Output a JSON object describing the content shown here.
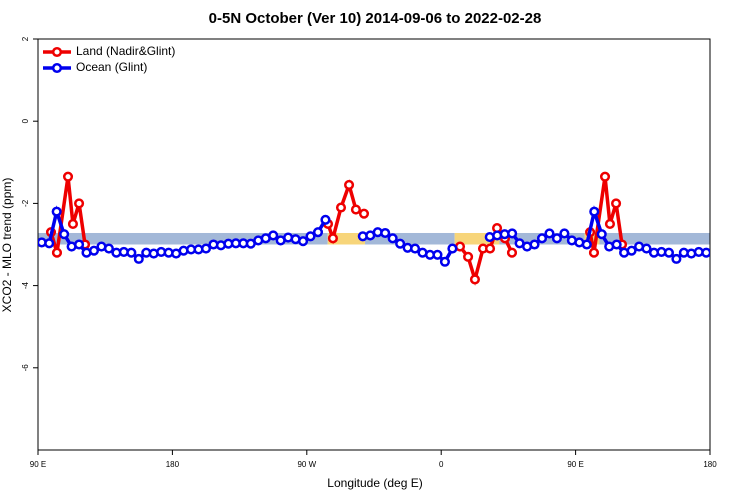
{
  "chart_data": {
    "type": "line",
    "title": "0-5N October (Ver 10)   2014-09-06 to 2022-02-28",
    "xlabel": "Longitude (deg E)",
    "ylabel": "XCO2 - MLO trend (ppm)",
    "xlim": [
      90,
      540
    ],
    "ylim": [
      -8,
      2
    ],
    "xticks": [
      {
        "value": 90,
        "label": "90 E"
      },
      180,
      {
        "value": 270,
        "label": "90 W"
      },
      {
        "value": 360,
        "label": "0"
      },
      {
        "value": 450,
        "label": "90 E"
      },
      {
        "value": 540,
        "label": "180"
      }
    ],
    "yticks": [
      2,
      0,
      -2,
      -4,
      -6
    ],
    "legend": "upper left",
    "band": {
      "ylim": [
        -3.0,
        -2.72
      ],
      "segments": [
        {
          "x": [
            90,
            284
          ],
          "color": "#a3b8d8"
        },
        {
          "x": [
            284,
            309
          ],
          "color": "#f7d57a"
        },
        {
          "x": [
            309,
            369
          ],
          "color": "#a3b8d8"
        },
        {
          "x": [
            369,
            399
          ],
          "color": "#f7d57a"
        },
        {
          "x": [
            399,
            456
          ],
          "color": "#a3b8d8"
        },
        {
          "x": [
            456,
            466
          ],
          "color": "#f7d57a"
        },
        {
          "x": [
            466,
            540
          ],
          "color": "#a3b8d8"
        }
      ]
    },
    "series": [
      {
        "name": "Land (Nadir&Glint)",
        "color": "#ee0000",
        "x": [
          98.7,
          102.7,
          110.1,
          113.4,
          117.5,
          121.5,
          null,
          284.2,
          287.5,
          292.9,
          298.3,
          302.9,
          308.3,
          null,
          372.6,
          378,
          382.6,
          388,
          392.7,
          397.4,
          402.7,
          407.4,
          null,
          459.7,
          462.3,
          469.7,
          473,
          477.1,
          481.1
        ],
        "values": [
          -2.7,
          -3.2,
          -1.35,
          -2.5,
          -2.0,
          -3.0,
          null,
          -2.5,
          -2.85,
          -2.1,
          -1.55,
          -2.15,
          -2.25,
          null,
          -3.05,
          -3.3,
          -3.85,
          -3.1,
          -3.1,
          -2.6,
          -2.85,
          -3.2,
          null,
          -2.7,
          -3.2,
          -1.35,
          -2.5,
          -2.0,
          -3.0
        ]
      },
      {
        "name": "Ocean (Glint)",
        "color": "#0000ee",
        "x": [
          92.5,
          97.5,
          102.5,
          107.5,
          112.5,
          117.5,
          122.5,
          127.5,
          132.5,
          137.5,
          142.5,
          147.5,
          152.5,
          157.5,
          162.5,
          167.5,
          172.5,
          177.5,
          182.5,
          187.5,
          192.5,
          197.5,
          202.5,
          207.5,
          212.5,
          217.5,
          222.5,
          227.5,
          232.5,
          237.5,
          242.5,
          247.5,
          252.5,
          257.5,
          262.5,
          267.5,
          272.5,
          277.5,
          282.5,
          287.5,
          292.5,
          297.5,
          302.5,
          307.5,
          312.5,
          317.5,
          322.5,
          327.5,
          332.5,
          337.5,
          342.5,
          347.5,
          352.5,
          357.5,
          362.5,
          367.5,
          372.5,
          377.5,
          382.5,
          387.5,
          392.5,
          397.5,
          402.5,
          407.5,
          412.5,
          417.5,
          422.5,
          427.5,
          432.5,
          437.5,
          442.5,
          447.5,
          452.5,
          457.5,
          462.5,
          467.5,
          472.5,
          477.5,
          482.5,
          487.5,
          492.5,
          497.5,
          502.5,
          507.5,
          512.5,
          517.5,
          522.5,
          527.5,
          532.5,
          537.5
        ],
        "values": [
          -2.95,
          -2.97,
          -2.2,
          -2.75,
          -3.05,
          -3.0,
          -3.2,
          -3.15,
          -3.05,
          -3.1,
          -3.2,
          -3.18,
          -3.2,
          -3.35,
          -3.2,
          -3.22,
          -3.18,
          -3.2,
          -3.22,
          -3.15,
          -3.12,
          -3.12,
          -3.1,
          -3.0,
          -3.02,
          -2.98,
          -2.97,
          -2.97,
          -2.98,
          -2.9,
          -2.85,
          -2.78,
          -2.9,
          -2.83,
          -2.87,
          -2.92,
          -2.8,
          -2.7,
          -2.4,
          null,
          null,
          null,
          null,
          -2.8,
          -2.78,
          -2.7,
          -2.72,
          -2.85,
          -2.98,
          -3.08,
          -3.1,
          -3.2,
          -3.25,
          -3.25,
          -3.42,
          -3.1,
          null,
          null,
          null,
          null,
          -2.82,
          -2.78,
          -2.75,
          -2.73,
          -2.97,
          -3.05,
          -3.0,
          -2.85,
          -2.73,
          -2.85,
          -2.73,
          -2.9,
          -2.95,
          -3.0,
          -2.2,
          -2.75,
          -3.05,
          -3.0,
          -3.2,
          -3.15,
          -3.05,
          -3.1,
          -3.2,
          -3.18,
          -3.2,
          -3.35,
          -3.2,
          -3.22,
          -3.18,
          -3.2
        ]
      }
    ]
  }
}
